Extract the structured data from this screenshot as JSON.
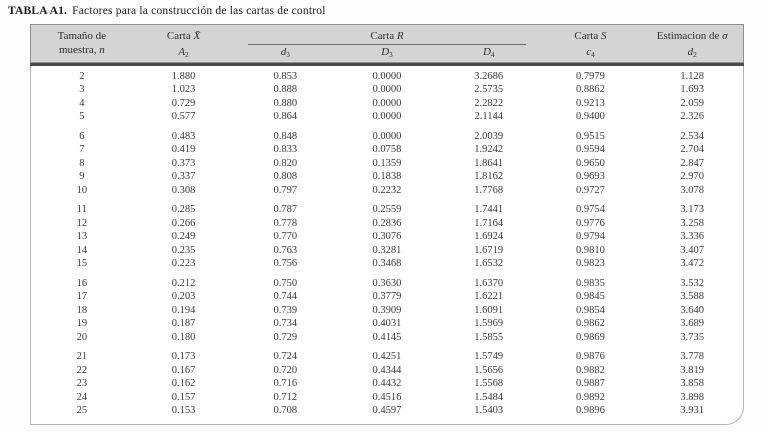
{
  "title": {
    "label": "TABLA A1.",
    "text": "Factores para la construcción de las cartas de control"
  },
  "table": {
    "headers": {
      "sample_line1": "Tamaño de",
      "sample_line2": "muestra, ",
      "sample_symbol": "n",
      "carta_x_prefix": "Carta ",
      "carta_x_symbol": "X̄",
      "a2_base": "A",
      "a2_sub": "2",
      "carta_r_prefix": "Carta ",
      "carta_r_symbol": "R",
      "d3_base": "d",
      "d3_sub": "3",
      "cap_d3_base": "D",
      "cap_d3_sub": "3",
      "cap_d4_base": "D",
      "cap_d4_sub": "4",
      "carta_s_prefix": "Carta ",
      "carta_s_symbol": "S",
      "c4_base": "c",
      "c4_sub": "4",
      "sigma_prefix": "Estimacion de ",
      "sigma_symbol": "σ",
      "d2_base": "d",
      "d2_sub": "2"
    },
    "columns_semantic": [
      "n",
      "A2",
      "d3",
      "D3",
      "D4",
      "c4",
      "d2"
    ],
    "groups": [
      {
        "rows": [
          [
            "2",
            "1.880",
            "0.853",
            "0.0000",
            "3.2686",
            "0.7979",
            "1.128"
          ],
          [
            "3",
            "1.023",
            "0.888",
            "0.0000",
            "2.5735",
            "0.8862",
            "1.693"
          ],
          [
            "4",
            "0.729",
            "0.880",
            "0.0000",
            "2.2822",
            "0.9213",
            "2.059"
          ],
          [
            "5",
            "0.577",
            "0.864",
            "0.0000",
            "2.1144",
            "0.9400",
            "2.326"
          ]
        ]
      },
      {
        "rows": [
          [
            "6",
            "0.483",
            "0.848",
            "0.0000",
            "2.0039",
            "0.9515",
            "2.534"
          ],
          [
            "7",
            "0.419",
            "0.833",
            "0.0758",
            "1.9242",
            "0.9594",
            "2.704"
          ],
          [
            "8",
            "0.373",
            "0.820",
            "0.1359",
            "1.8641",
            "0.9650",
            "2.847"
          ],
          [
            "9",
            "0.337",
            "0.808",
            "0.1838",
            "1.8162",
            "0.9693",
            "2.970"
          ],
          [
            "10",
            "0.308",
            "0.797",
            "0.2232",
            "1.7768",
            "0.9727",
            "3.078"
          ]
        ]
      },
      {
        "rows": [
          [
            "11",
            "0.285",
            "0.787",
            "0.2559",
            "1.7441",
            "0.9754",
            "3.173"
          ],
          [
            "12",
            "0.266",
            "0.778",
            "0.2836",
            "1.7164",
            "0.9776",
            "3.258"
          ],
          [
            "13",
            "0.249",
            "0.770",
            "0.3076",
            "1.6924",
            "0.9794",
            "3.336"
          ],
          [
            "14",
            "0.235",
            "0.763",
            "0.3281",
            "1.6719",
            "0.9810",
            "3.407"
          ],
          [
            "15",
            "0.223",
            "0.756",
            "0.3468",
            "1.6532",
            "0.9823",
            "3.472"
          ]
        ]
      },
      {
        "rows": [
          [
            "16",
            "0.212",
            "0.750",
            "0.3630",
            "1.6370",
            "0.9835",
            "3.532"
          ],
          [
            "17",
            "0.203",
            "0.744",
            "0.3779",
            "1.6221",
            "0.9845",
            "3.588"
          ],
          [
            "18",
            "0.194",
            "0.739",
            "0.3909",
            "1.6091",
            "0.9854",
            "3.640"
          ],
          [
            "19",
            "0.187",
            "0.734",
            "0.4031",
            "1.5969",
            "0.9862",
            "3.689"
          ],
          [
            "20",
            "0.180",
            "0.729",
            "0.4145",
            "1.5855",
            "0.9869",
            "3.735"
          ]
        ]
      },
      {
        "rows": [
          [
            "21",
            "0.173",
            "0.724",
            "0.4251",
            "1.5749",
            "0.9876",
            "3.778"
          ],
          [
            "22",
            "0.167",
            "0.720",
            "0.4344",
            "1.5656",
            "0.9882",
            "3.819"
          ],
          [
            "23",
            "0.162",
            "0.716",
            "0.4432",
            "1.5568",
            "0.9887",
            "3.858"
          ],
          [
            "24",
            "0.157",
            "0.712",
            "0.4516",
            "1.5484",
            "0.9892",
            "3.898"
          ],
          [
            "25",
            "0.153",
            "0.708",
            "0.4597",
            "1.5403",
            "0.9896",
            "3.931"
          ]
        ]
      }
    ],
    "colors": {
      "header_bg": "#d4d4d4",
      "header_border": "#8e8e8e",
      "separator": "#4a4a4a",
      "body_border": "#b3b3b3",
      "text": "#333333"
    }
  }
}
